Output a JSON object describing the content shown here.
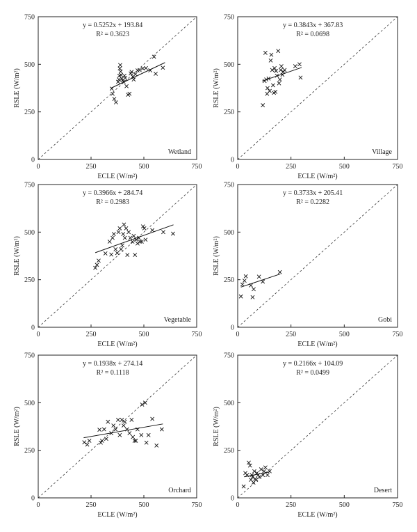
{
  "chart_data": [
    {
      "type": "scatter",
      "label": "Wetland",
      "xlabel": "ECLE (W/m²)",
      "ylabel": "RSLE (W/m²)",
      "xlim": [
        0,
        750
      ],
      "ylim": [
        0,
        750
      ],
      "xticks": [
        "0",
        "250",
        "500",
        "750"
      ],
      "yticks": [
        "0",
        "250",
        "500",
        "750"
      ],
      "equation": "y = 0.5252x + 193.84",
      "r2": "R² = 0.3623",
      "fit": {
        "slope": 0.5252,
        "intercept": 193.84,
        "x_range": [
          345,
          600
        ]
      },
      "reference_line": "1:1",
      "points": [
        [
          348,
          372
        ],
        [
          352,
          345
        ],
        [
          360,
          318
        ],
        [
          368,
          300
        ],
        [
          378,
          408
        ],
        [
          382,
          420
        ],
        [
          384,
          440
        ],
        [
          386,
          478
        ],
        [
          388,
          496
        ],
        [
          390,
          462
        ],
        [
          392,
          444
        ],
        [
          396,
          425
        ],
        [
          400,
          415
        ],
        [
          404,
          408
        ],
        [
          408,
          440
        ],
        [
          412,
          428
        ],
        [
          418,
          385
        ],
        [
          425,
          340
        ],
        [
          432,
          345
        ],
        [
          438,
          452
        ],
        [
          442,
          460
        ],
        [
          448,
          435
        ],
        [
          452,
          420
        ],
        [
          460,
          448
        ],
        [
          470,
          468
        ],
        [
          480,
          470
        ],
        [
          495,
          478
        ],
        [
          510,
          480
        ],
        [
          530,
          468
        ],
        [
          548,
          540
        ],
        [
          556,
          450
        ],
        [
          590,
          482
        ]
      ]
    },
    {
      "type": "scatter",
      "label": "Village",
      "xlabel": "ECLE (W/m²)",
      "ylabel": "RSLE (W/m²)",
      "xlim": [
        0,
        750
      ],
      "ylim": [
        0,
        750
      ],
      "xticks": [
        "0",
        "250",
        "500",
        "750"
      ],
      "yticks": [
        "0",
        "250",
        "500",
        "750"
      ],
      "equation": "y = 0.3843x + 367.83",
      "r2": "R² = 0.0698",
      "fit": {
        "slope": 0.3843,
        "intercept": 367.83,
        "x_range": [
          115,
          300
        ]
      },
      "reference_line": "1:1",
      "points": [
        [
          118,
          285
        ],
        [
          126,
          412
        ],
        [
          130,
          560
        ],
        [
          134,
          420
        ],
        [
          138,
          345
        ],
        [
          140,
          375
        ],
        [
          145,
          425
        ],
        [
          150,
          360
        ],
        [
          155,
          520
        ],
        [
          158,
          550
        ],
        [
          162,
          470
        ],
        [
          166,
          390
        ],
        [
          170,
          350
        ],
        [
          173,
          480
        ],
        [
          177,
          355
        ],
        [
          180,
          465
        ],
        [
          184,
          440
        ],
        [
          190,
          570
        ],
        [
          194,
          400
        ],
        [
          198,
          420
        ],
        [
          202,
          470
        ],
        [
          205,
          490
        ],
        [
          210,
          445
        ],
        [
          214,
          460
        ],
        [
          220,
          470
        ],
        [
          270,
          490
        ],
        [
          290,
          500
        ],
        [
          295,
          430
        ]
      ]
    },
    {
      "type": "scatter",
      "label": "Vegetable",
      "xlabel": "ECLE (W/m²)",
      "ylabel": "RSLE (W/m²)",
      "xlim": [
        0,
        750
      ],
      "ylim": [
        0,
        750
      ],
      "xticks": [
        "0",
        "250",
        "500",
        "750"
      ],
      "yticks": [
        "0",
        "250",
        "500",
        "750"
      ],
      "equation": "y = 0.3966x + 284.74",
      "r2": "R² = 0.2983",
      "fit": {
        "slope": 0.3966,
        "intercept": 284.74,
        "x_range": [
          270,
          640
        ]
      },
      "reference_line": "1:1",
      "points": [
        [
          270,
          312
        ],
        [
          278,
          328
        ],
        [
          286,
          350
        ],
        [
          318,
          388
        ],
        [
          338,
          450
        ],
        [
          346,
          382
        ],
        [
          352,
          470
        ],
        [
          358,
          490
        ],
        [
          366,
          410
        ],
        [
          374,
          390
        ],
        [
          380,
          500
        ],
        [
          386,
          520
        ],
        [
          392,
          410
        ],
        [
          398,
          430
        ],
        [
          402,
          490
        ],
        [
          406,
          540
        ],
        [
          410,
          470
        ],
        [
          416,
          520
        ],
        [
          422,
          380
        ],
        [
          428,
          500
        ],
        [
          436,
          470
        ],
        [
          446,
          450
        ],
        [
          452,
          480
        ],
        [
          458,
          380
        ],
        [
          464,
          460
        ],
        [
          470,
          440
        ],
        [
          476,
          470
        ],
        [
          482,
          450
        ],
        [
          490,
          450
        ],
        [
          496,
          530
        ],
        [
          502,
          520
        ],
        [
          508,
          460
        ],
        [
          540,
          510
        ],
        [
          592,
          500
        ],
        [
          638,
          492
        ]
      ]
    },
    {
      "type": "scatter",
      "label": "Gobi",
      "xlabel": "ECLE (W/m²)",
      "ylabel": "RSLE (W/m²)",
      "xlim": [
        0,
        750
      ],
      "ylim": [
        0,
        750
      ],
      "xticks": [
        "0",
        "250",
        "500",
        "750"
      ],
      "yticks": [
        "0",
        "250",
        "500",
        "750"
      ],
      "equation": "y = 0.3733x + 205.41",
      "r2": "R² = 0.2282",
      "fit": {
        "slope": 0.3733,
        "intercept": 205.41,
        "x_range": [
          15,
          200
        ]
      },
      "reference_line": "1:1",
      "points": [
        [
          15,
          162
        ],
        [
          22,
          225
        ],
        [
          32,
          245
        ],
        [
          38,
          268
        ],
        [
          62,
          220
        ],
        [
          70,
          158
        ],
        [
          75,
          200
        ],
        [
          100,
          266
        ],
        [
          118,
          240
        ],
        [
          198,
          290
        ]
      ]
    },
    {
      "type": "scatter",
      "label": "Orchard",
      "xlabel": "ECLE (W/m²)",
      "ylabel": "RSLE (W/m²)",
      "xlim": [
        0,
        750
      ],
      "ylim": [
        0,
        750
      ],
      "xticks": [
        "0",
        "250",
        "500",
        "750"
      ],
      "yticks": [
        "0",
        "250",
        "500",
        "750"
      ],
      "equation": "y = 0.1938x + 274.14",
      "r2": "R² = 0.1118",
      "fit": {
        "slope": 0.1938,
        "intercept": 274.14,
        "x_range": [
          215,
          590
        ]
      },
      "reference_line": "1:1",
      "points": [
        [
          218,
          292
        ],
        [
          232,
          280
        ],
        [
          242,
          300
        ],
        [
          290,
          358
        ],
        [
          296,
          290
        ],
        [
          302,
          300
        ],
        [
          312,
          360
        ],
        [
          322,
          310
        ],
        [
          330,
          400
        ],
        [
          346,
          340
        ],
        [
          356,
          380
        ],
        [
          366,
          360
        ],
        [
          378,
          410
        ],
        [
          386,
          330
        ],
        [
          396,
          410
        ],
        [
          404,
          380
        ],
        [
          410,
          400
        ],
        [
          420,
          360
        ],
        [
          432,
          340
        ],
        [
          442,
          410
        ],
        [
          448,
          320
        ],
        [
          456,
          300
        ],
        [
          462,
          300
        ],
        [
          470,
          360
        ],
        [
          488,
          330
        ],
        [
          492,
          490
        ],
        [
          506,
          500
        ],
        [
          512,
          290
        ],
        [
          522,
          330
        ],
        [
          540,
          415
        ],
        [
          560,
          275
        ],
        [
          585,
          360
        ]
      ]
    },
    {
      "type": "scatter",
      "label": "Desert",
      "xlabel": "ECLE (W/m²)",
      "ylabel": "RSLE (W/m²)",
      "xlim": [
        0,
        750
      ],
      "ylim": [
        0,
        750
      ],
      "xticks": [
        "0",
        "250",
        "500",
        "750"
      ],
      "yticks": [
        "0",
        "250",
        "500",
        "750"
      ],
      "equation": "y = 0.2166x + 104.09",
      "r2": "R² = 0.0499",
      "fit": {
        "slope": 0.2166,
        "intercept": 104.09,
        "x_range": [
          30,
          150
        ]
      },
      "reference_line": "1:1",
      "points": [
        [
          28,
          60
        ],
        [
          36,
          130
        ],
        [
          44,
          120
        ],
        [
          52,
          185
        ],
        [
          58,
          170
        ],
        [
          62,
          95
        ],
        [
          66,
          120
        ],
        [
          70,
          110
        ],
        [
          74,
          80
        ],
        [
          78,
          140
        ],
        [
          82,
          100
        ],
        [
          86,
          95
        ],
        [
          90,
          130
        ],
        [
          96,
          120
        ],
        [
          102,
          110
        ],
        [
          110,
          150
        ],
        [
          118,
          120
        ],
        [
          124,
          140
        ],
        [
          130,
          160
        ],
        [
          140,
          120
        ],
        [
          150,
          140
        ]
      ]
    }
  ]
}
